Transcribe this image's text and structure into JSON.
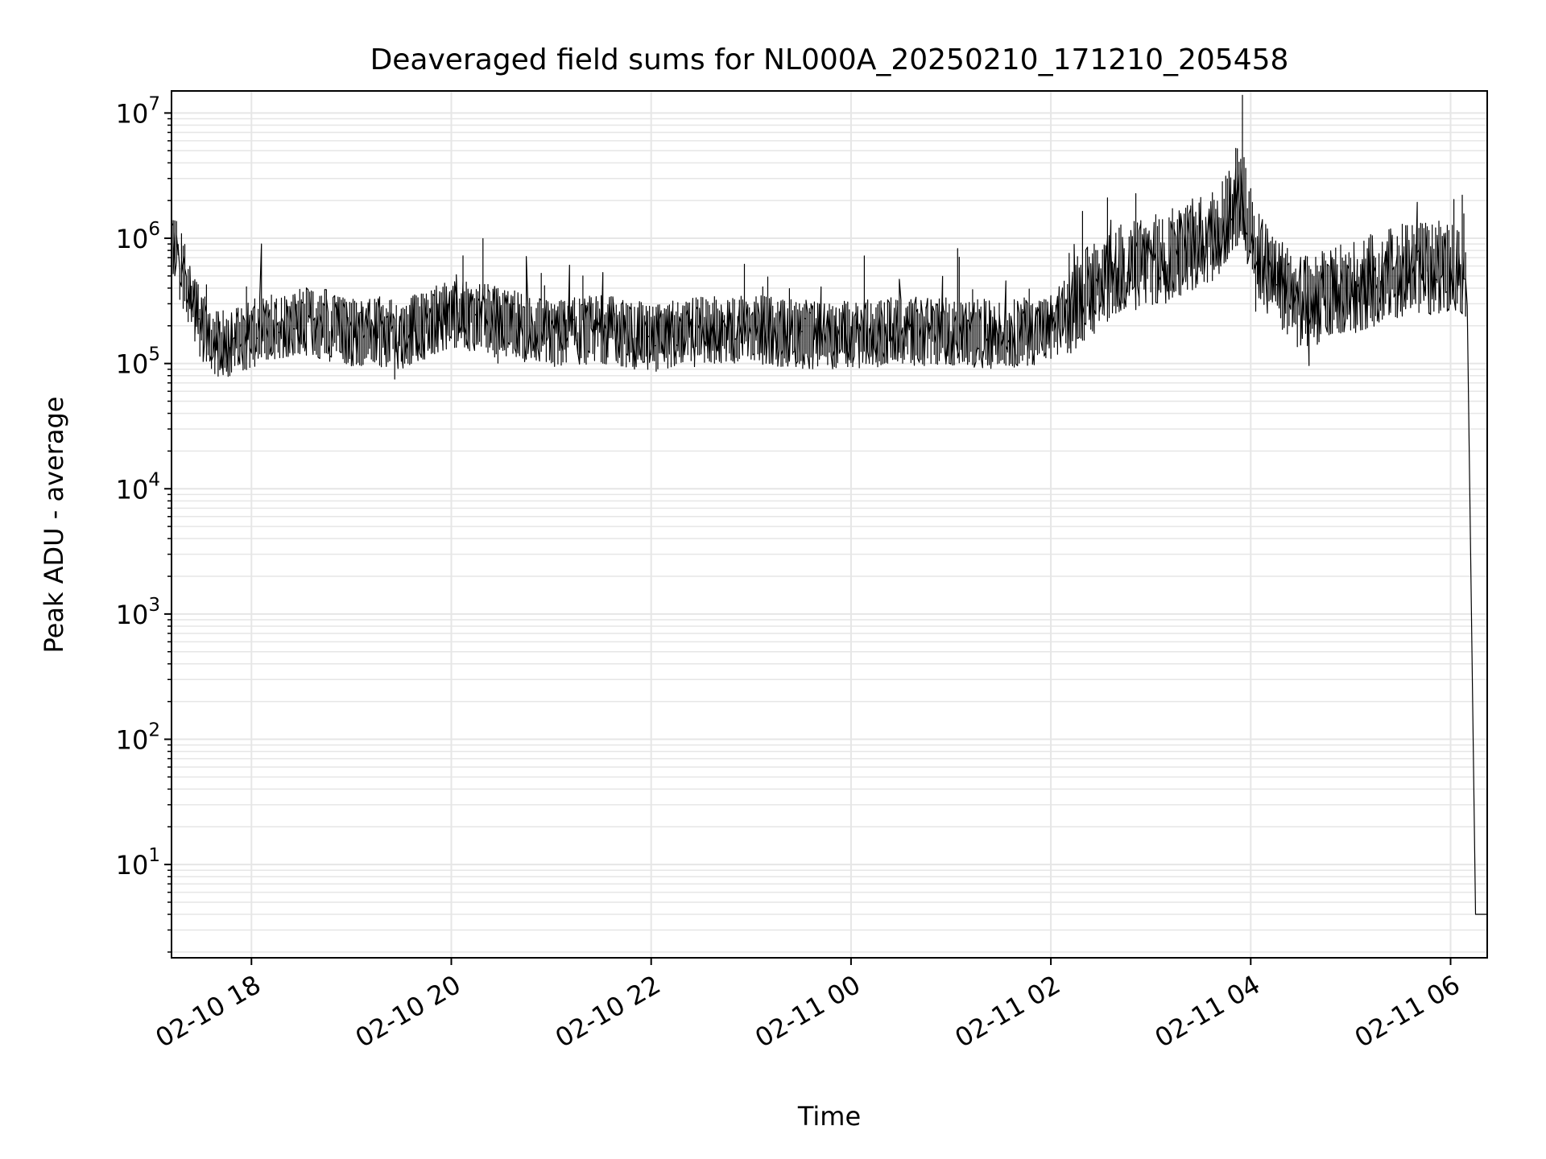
{
  "chart_data": {
    "type": "line",
    "title": "Deaveraged field sums for NL000A_20250210_171210_205458",
    "xlabel": "Time",
    "ylabel": "Peak ADU - average",
    "yscale": "log",
    "xlim": [
      "2025-02-10 17:12",
      "2025-02-11 06:22"
    ],
    "ylim": [
      1.8,
      15000000.0
    ],
    "grid": true,
    "line_color": "#000000",
    "grid_color": "#e6e6e6",
    "x_ticks": [
      {
        "t": "2025-02-10 18:00",
        "label": "02-10 18"
      },
      {
        "t": "2025-02-10 20:00",
        "label": "02-10 20"
      },
      {
        "t": "2025-02-10 22:00",
        "label": "02-10 22"
      },
      {
        "t": "2025-02-11 00:00",
        "label": "02-11 00"
      },
      {
        "t": "2025-02-11 02:00",
        "label": "02-11 02"
      },
      {
        "t": "2025-02-11 04:00",
        "label": "02-11 04"
      },
      {
        "t": "2025-02-11 06:00",
        "label": "02-11 06"
      }
    ],
    "y_ticks": [
      {
        "value": 10,
        "label": "10",
        "exp": "1"
      },
      {
        "value": 100,
        "label": "10",
        "exp": "2"
      },
      {
        "value": 1000,
        "label": "10",
        "exp": "3"
      },
      {
        "value": 10000,
        "label": "10",
        "exp": "4"
      },
      {
        "value": 100000,
        "label": "10",
        "exp": "5"
      },
      {
        "value": 1000000,
        "label": "10",
        "exp": "6"
      },
      {
        "value": 10000000,
        "label": "10",
        "exp": "7"
      }
    ],
    "series": [
      {
        "x": [
          "2025-02-10 17:12",
          "2025-02-10 17:20",
          "2025-02-10 17:30",
          "2025-02-10 17:40",
          "2025-02-10 17:50",
          "2025-02-10 18:00",
          "2025-02-10 18:15",
          "2025-02-10 18:30",
          "2025-02-10 19:00",
          "2025-02-10 19:30",
          "2025-02-10 20:00",
          "2025-02-10 20:30",
          "2025-02-10 21:00",
          "2025-02-10 21:30",
          "2025-02-10 22:00",
          "2025-02-10 22:30",
          "2025-02-10 23:00",
          "2025-02-10 23:30",
          "2025-02-11 00:00",
          "2025-02-11 00:30",
          "2025-02-11 01:00",
          "2025-02-11 01:30",
          "2025-02-11 02:00",
          "2025-02-11 02:20",
          "2025-02-11 02:40",
          "2025-02-11 03:00",
          "2025-02-11 03:20",
          "2025-02-11 03:40",
          "2025-02-11 03:55",
          "2025-02-11 04:05",
          "2025-02-11 04:30",
          "2025-02-11 05:00",
          "2025-02-11 05:30",
          "2025-02-11 06:00",
          "2025-02-11 06:10",
          "2025-02-11 06:15",
          "2025-02-11 06:22"
        ],
        "y": [
          1000000,
          500000,
          200000,
          140000,
          150000,
          170000,
          200000,
          220000,
          180000,
          170000,
          250000,
          220000,
          170000,
          190000,
          160000,
          180000,
          190000,
          170000,
          170000,
          180000,
          180000,
          170000,
          190000,
          350000,
          550000,
          650000,
          800000,
          1100000,
          2200000,
          700000,
          300000,
          400000,
          550000,
          600000,
          550000,
          4,
          4
        ]
      }
    ]
  }
}
